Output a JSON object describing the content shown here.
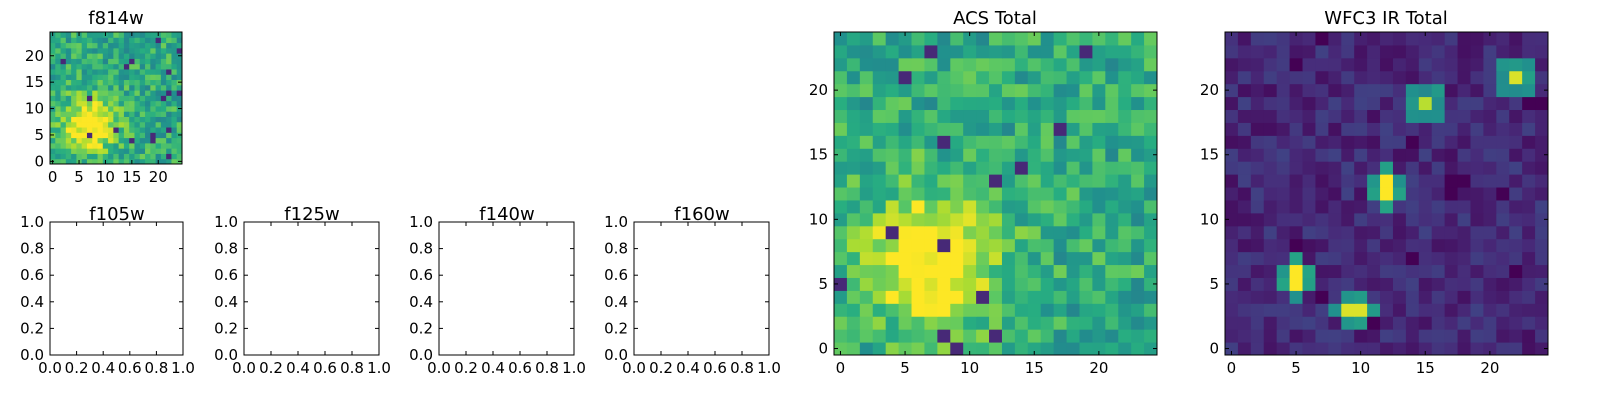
{
  "chart_data": [
    {
      "type": "heatmap",
      "title": "f814w",
      "colormap": "viridis",
      "grid_size": 25,
      "x_ticks": [
        "0",
        "5",
        "10",
        "15",
        "20"
      ],
      "y_ticks": [
        "0",
        "5",
        "10",
        "15",
        "20"
      ],
      "z_description": "noise with bright blob near x=7, y=7",
      "blobs": [
        {
          "x": 7,
          "y": 7,
          "sigma": 3.5,
          "amplitude": 0.5
        }
      ],
      "background_level": 0.62,
      "noise_level": 0.16
    },
    {
      "type": "empty",
      "title": "f105w",
      "x_ticks": [
        "0.0",
        "0.2",
        "0.4",
        "0.6",
        "0.8",
        "1.0"
      ],
      "y_ticks": [
        "0.0",
        "0.2",
        "0.4",
        "0.6",
        "0.8",
        "1.0"
      ],
      "xlim": [
        0,
        1
      ],
      "ylim": [
        0,
        1
      ]
    },
    {
      "type": "empty",
      "title": "f125w",
      "x_ticks": [
        "0.0",
        "0.2",
        "0.4",
        "0.6",
        "0.8",
        "1.0"
      ],
      "y_ticks": [
        "0.0",
        "0.2",
        "0.4",
        "0.6",
        "0.8",
        "1.0"
      ],
      "xlim": [
        0,
        1
      ],
      "ylim": [
        0,
        1
      ]
    },
    {
      "type": "empty",
      "title": "f140w",
      "x_ticks": [
        "0.0",
        "0.2",
        "0.4",
        "0.6",
        "0.8",
        "1.0"
      ],
      "y_ticks": [
        "0.0",
        "0.2",
        "0.4",
        "0.6",
        "0.8",
        "1.0"
      ],
      "xlim": [
        0,
        1
      ],
      "ylim": [
        0,
        1
      ]
    },
    {
      "type": "empty",
      "title": "f160w",
      "x_ticks": [
        "0.0",
        "0.2",
        "0.4",
        "0.6",
        "0.8",
        "1.0"
      ],
      "y_ticks": [
        "0.0",
        "0.2",
        "0.4",
        "0.6",
        "0.8",
        "1.0"
      ],
      "xlim": [
        0,
        1
      ],
      "ylim": [
        0,
        1
      ]
    },
    {
      "type": "heatmap",
      "title": "ACS Total",
      "colormap": "viridis",
      "grid_size": 25,
      "x_ticks": [
        "0",
        "5",
        "10",
        "15",
        "20"
      ],
      "y_ticks": [
        "0",
        "5",
        "10",
        "15",
        "20"
      ],
      "z_description": "noise with bright blob near x=7, y=7",
      "blobs": [
        {
          "x": 7,
          "y": 7,
          "sigma": 3.5,
          "amplitude": 0.5
        }
      ],
      "background_level": 0.62,
      "noise_level": 0.16
    },
    {
      "type": "heatmap",
      "title": "WFC3 IR Total",
      "colormap": "viridis",
      "grid_size": 25,
      "x_ticks": [
        "0",
        "5",
        "10",
        "15",
        "20"
      ],
      "y_ticks": [
        "0",
        "5",
        "10",
        "15",
        "20"
      ],
      "z_description": "dark noisy field with compact bright sources",
      "sources": [
        {
          "x": 22,
          "y": 21,
          "value": 0.95
        },
        {
          "x": 15,
          "y": 19,
          "value": 0.9
        },
        {
          "x": 12,
          "y": 12.5,
          "value": 1.0
        },
        {
          "x": 5,
          "y": 5.5,
          "value": 1.0
        },
        {
          "x": 9.5,
          "y": 3,
          "value": 0.95
        }
      ],
      "background_level": 0.12,
      "noise_level": 0.08
    }
  ]
}
